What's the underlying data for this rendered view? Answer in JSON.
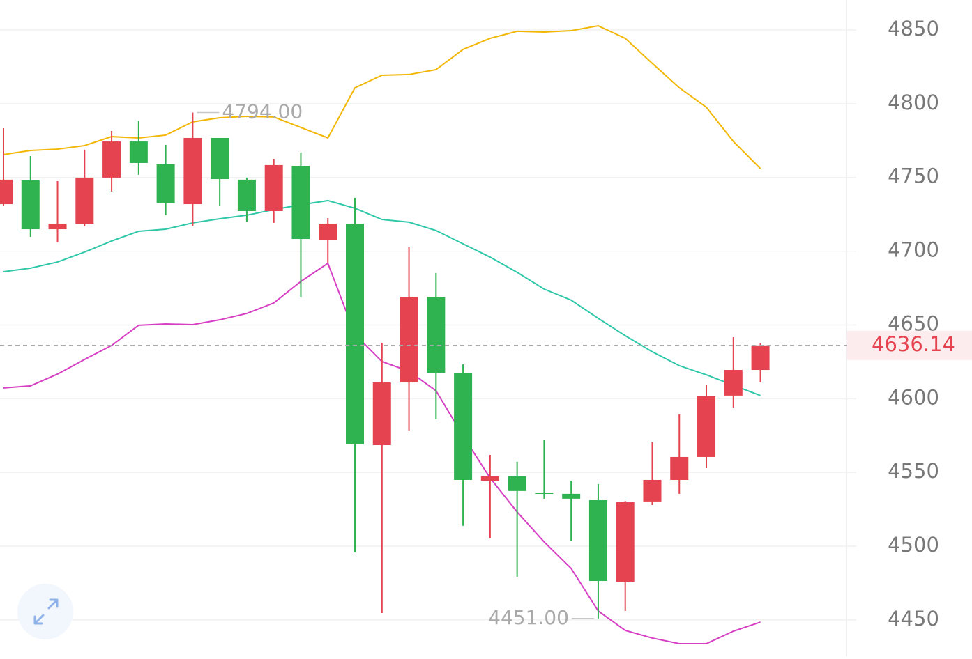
{
  "chart_data": {
    "type": "candlestick",
    "categories": [
      null,
      null,
      null,
      null,
      null,
      null,
      null,
      null,
      null,
      null,
      null,
      null,
      null,
      null,
      null,
      null,
      null,
      null,
      null,
      null,
      null,
      null,
      null,
      null,
      null,
      null,
      null,
      null,
      null
    ],
    "open": [
      4731.9,
      4748.0,
      4714.9,
      4718.7,
      4749.9,
      4774.4,
      4758.9,
      4731.9,
      4776.8,
      4748.5,
      4727.2,
      4757.9,
      4707.8,
      4718.7,
      4568.5,
      4611.0,
      4669.1,
      4617.2,
      4544.4,
      4547.3,
      4536.4,
      4535.5,
      4531.2,
      4475.9,
      4530.3,
      4544.9,
      4560.5,
      4602.1,
      4619.5
    ],
    "high": [
      4783.4,
      4764.5,
      4747.5,
      4768.8,
      4781.5,
      4788.6,
      4772.1,
      4794,
      4776.8,
      4749.9,
      4762.6,
      4766.9,
      4722.5,
      4736.2,
      4637.9,
      4702.7,
      4685.2,
      4623.3,
      4561.9,
      4557.2,
      4571.8,
      4544.4,
      4542.1,
      4530.7,
      4570.4,
      4589.3,
      4609.6,
      4641.7,
      4637.5
    ],
    "low": [
      4731.0,
      4709.7,
      4706.0,
      4716.8,
      4740.4,
      4751.8,
      4724.4,
      4717.3,
      4730.5,
      4720.1,
      4719.2,
      4668.7,
      4692.3,
      4495.8,
      4454.7,
      4578.5,
      4586.0,
      4513.8,
      4505.2,
      4479.3,
      4532.2,
      4503.8,
      4451,
      4456.1,
      4527.9,
      4535.5,
      4552.9,
      4594.0,
      4611.0
    ],
    "close": [
      4748.5,
      4714.9,
      4718.7,
      4749.9,
      4774.4,
      4759.8,
      4732.4,
      4776.8,
      4748.9,
      4727.2,
      4758.4,
      4708.3,
      4718.7,
      4569.0,
      4611.0,
      4669.1,
      4617.6,
      4544.9,
      4547.3,
      4537.4,
      4535.5,
      4532.2,
      4476.4,
      4529.8,
      4544.9,
      4560.5,
      4601.6,
      4619.5,
      4636.14
    ],
    "up_color": "#e5434f",
    "down_color": "#2fb350",
    "series": [
      {
        "color": "#f2b705",
        "values": [
          4765.5,
          4768.3,
          4769.2,
          4771.6,
          4777.7,
          4776.8,
          4778.7,
          4787.7,
          4790.5,
          4791.4,
          4791.0,
          4783.9,
          4776.8,
          4810.8,
          4819.3,
          4819.8,
          4823.1,
          4836.8,
          4844.3,
          4849.1,
          4848.6,
          4849.5,
          4852.8,
          4844.3,
          4827.3,
          4810.8,
          4797.6,
          4774.4,
          4756.0
        ]
      },
      {
        "color": "#2ec7a8",
        "values": [
          4686.1,
          4688.5,
          4692.7,
          4699.4,
          4706.9,
          4713.5,
          4714.9,
          4719.2,
          4722.0,
          4724.4,
          4728.2,
          4731.5,
          4734.3,
          4729.1,
          4721.5,
          4719.7,
          4714.0,
          4705.0,
          4696.0,
          4685.7,
          4674.3,
          4666.8,
          4654.5,
          4642.7,
          4631.8,
          4622.4,
          4616.2,
          4609.1,
          4602.1
        ]
      },
      {
        "color": "#d63fc4",
        "values": [
          4607.3,
          4608.7,
          4616.7,
          4626.6,
          4636.1,
          4649.8,
          4650.7,
          4650.2,
          4653.5,
          4657.8,
          4664.9,
          4679.5,
          4691.8,
          4643.6,
          4625.2,
          4618.6,
          4605.4,
          4574.7,
          4546.3,
          4523.2,
          4502.9,
          4484.9,
          4456.1,
          4442.9,
          4437.7,
          4433.9,
          4433.9,
          4442.4,
          4448.5
        ]
      }
    ],
    "annotations": [
      {
        "value": 4794,
        "label": "4794.00"
      },
      {
        "value": 4451,
        "label": "4451.00"
      }
    ],
    "last_price": 4636.14,
    "ylim": [
      4425.4,
      4870.3
    ],
    "yticks": [
      4450,
      4500,
      4550,
      4600,
      4650,
      4700,
      4750,
      4800,
      4850
    ],
    "grid": true
  }
}
